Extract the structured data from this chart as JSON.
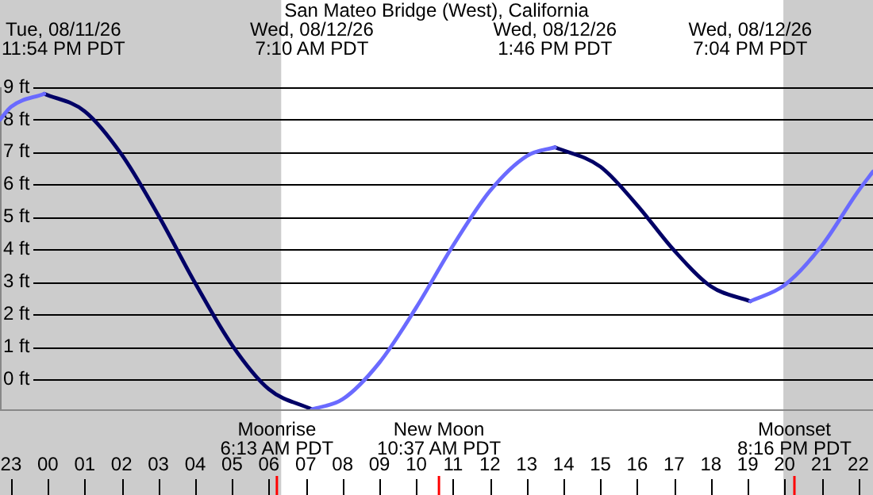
{
  "chart_data": {
    "type": "line",
    "title": "San Mateo Bridge (West), California",
    "x": [
      "--08-11T22:42",
      "--08-11T23:00",
      "--08-11T23:54",
      "--08-12T01:00",
      "--08-12T02:00",
      "--08-12T03:00",
      "--08-12T04:00",
      "--08-12T05:00",
      "--08-12T06:00",
      "--08-12T07:10",
      "--08-12T08:00",
      "--08-12T09:00",
      "--08-12T10:00",
      "--08-12T11:00",
      "--08-12T12:00",
      "--08-12T13:00",
      "--08-12T13:46",
      "--08-12T15:00",
      "--08-12T16:00",
      "--08-12T17:00",
      "--08-12T18:00",
      "--08-12T19:04",
      "--08-12T20:00",
      "--08-12T21:00",
      "--08-12T22:00",
      "--08-12T22:24"
    ],
    "series": [
      {
        "color": "#6a6aff",
        "values": [
          8.0,
          8.4,
          8.8,
          null,
          null,
          null,
          null,
          null,
          null,
          -0.93,
          -0.62,
          0.51,
          2.21,
          4.12,
          5.8,
          6.88,
          7.15,
          null,
          null,
          null,
          null,
          2.4,
          2.9,
          4.1,
          5.8,
          6.4
        ]
      },
      {
        "color": "#000066",
        "values": [
          null,
          null,
          8.8,
          8.26,
          6.93,
          5.05,
          2.96,
          1.05,
          -0.31,
          -0.93,
          null,
          null,
          null,
          null,
          null,
          null,
          7.15,
          6.55,
          5.36,
          3.97,
          2.86,
          2.4,
          null,
          null,
          null,
          null
        ]
      }
    ],
    "xlim": [
      "--08-11T22:42",
      "--08-12T22:24"
    ],
    "ylim": [
      -0.93,
      9
    ],
    "xticks": [
      {
        "value": "--08-11T23:00",
        "label": "23"
      },
      {
        "value": "--08-12T00:00",
        "label": "00"
      },
      {
        "value": "--08-12T01:00",
        "label": "01"
      },
      {
        "value": "--08-12T02:00",
        "label": "02"
      },
      {
        "value": "--08-12T03:00",
        "label": "03"
      },
      {
        "value": "--08-12T04:00",
        "label": "04"
      },
      {
        "value": "--08-12T05:00",
        "label": "05"
      },
      {
        "value": "--08-12T06:00",
        "label": "06"
      },
      {
        "value": "--08-12T07:00",
        "label": "07"
      },
      {
        "value": "--08-12T08:00",
        "label": "08"
      },
      {
        "value": "--08-12T09:00",
        "label": "09"
      },
      {
        "value": "--08-12T10:00",
        "label": "10"
      },
      {
        "value": "--08-12T11:00",
        "label": "11"
      },
      {
        "value": "--08-12T12:00",
        "label": "12"
      },
      {
        "value": "--08-12T13:00",
        "label": "13"
      },
      {
        "value": "--08-12T14:00",
        "label": "14"
      },
      {
        "value": "--08-12T15:00",
        "label": "15"
      },
      {
        "value": "--08-12T16:00",
        "label": "16"
      },
      {
        "value": "--08-12T17:00",
        "label": "17"
      },
      {
        "value": "--08-12T18:00",
        "label": "18"
      },
      {
        "value": "--08-12T19:00",
        "label": "19"
      },
      {
        "value": "--08-12T20:00",
        "label": "20"
      },
      {
        "value": "--08-12T21:00",
        "label": "21"
      },
      {
        "value": "--08-12T22:00",
        "label": "22"
      }
    ],
    "yticks": [
      {
        "value": 0,
        "label": "0 ft"
      },
      {
        "value": 1,
        "label": "1 ft"
      },
      {
        "value": 2,
        "label": "2 ft"
      },
      {
        "value": 3,
        "label": "3 ft"
      },
      {
        "value": 4,
        "label": "4 ft"
      },
      {
        "value": 5,
        "label": "5 ft"
      },
      {
        "value": 6,
        "label": "6 ft"
      },
      {
        "value": 7,
        "label": "7 ft"
      },
      {
        "value": 8,
        "label": "8 ft"
      },
      {
        "value": 9,
        "label": "9 ft"
      }
    ],
    "grid": "y",
    "legend": false,
    "marker": "none",
    "bands": [
      {
        "axis": "x",
        "from": "--08-11T22:42",
        "to": "--08-12T06:20",
        "color": "#cccccc"
      },
      {
        "axis": "x",
        "from": "--08-12T19:58",
        "to": "--08-12T22:24",
        "color": "#cccccc"
      }
    ],
    "ref_lines": [
      {
        "axis": "x",
        "value": "--08-12T06:13",
        "label": "Moonrise\n6:13 AM PDT",
        "color": "#ff0000"
      },
      {
        "axis": "x",
        "value": "--08-12T10:37",
        "label": "New Moon\n10:37 AM PDT",
        "color": "#ff0000"
      },
      {
        "axis": "x",
        "value": "--08-12T20:16",
        "label": "Moonset\n8:16 PM PDT",
        "color": "#ff0000"
      }
    ],
    "annotations": [
      "Tue, 08/11/26\n11:54 PM PDT",
      "Wed, 08/12/26\n7:10 AM PDT",
      "Wed, 08/12/26\n1:46 PM PDT",
      "Wed, 08/12/26\n7:04 PM PDT"
    ]
  }
}
